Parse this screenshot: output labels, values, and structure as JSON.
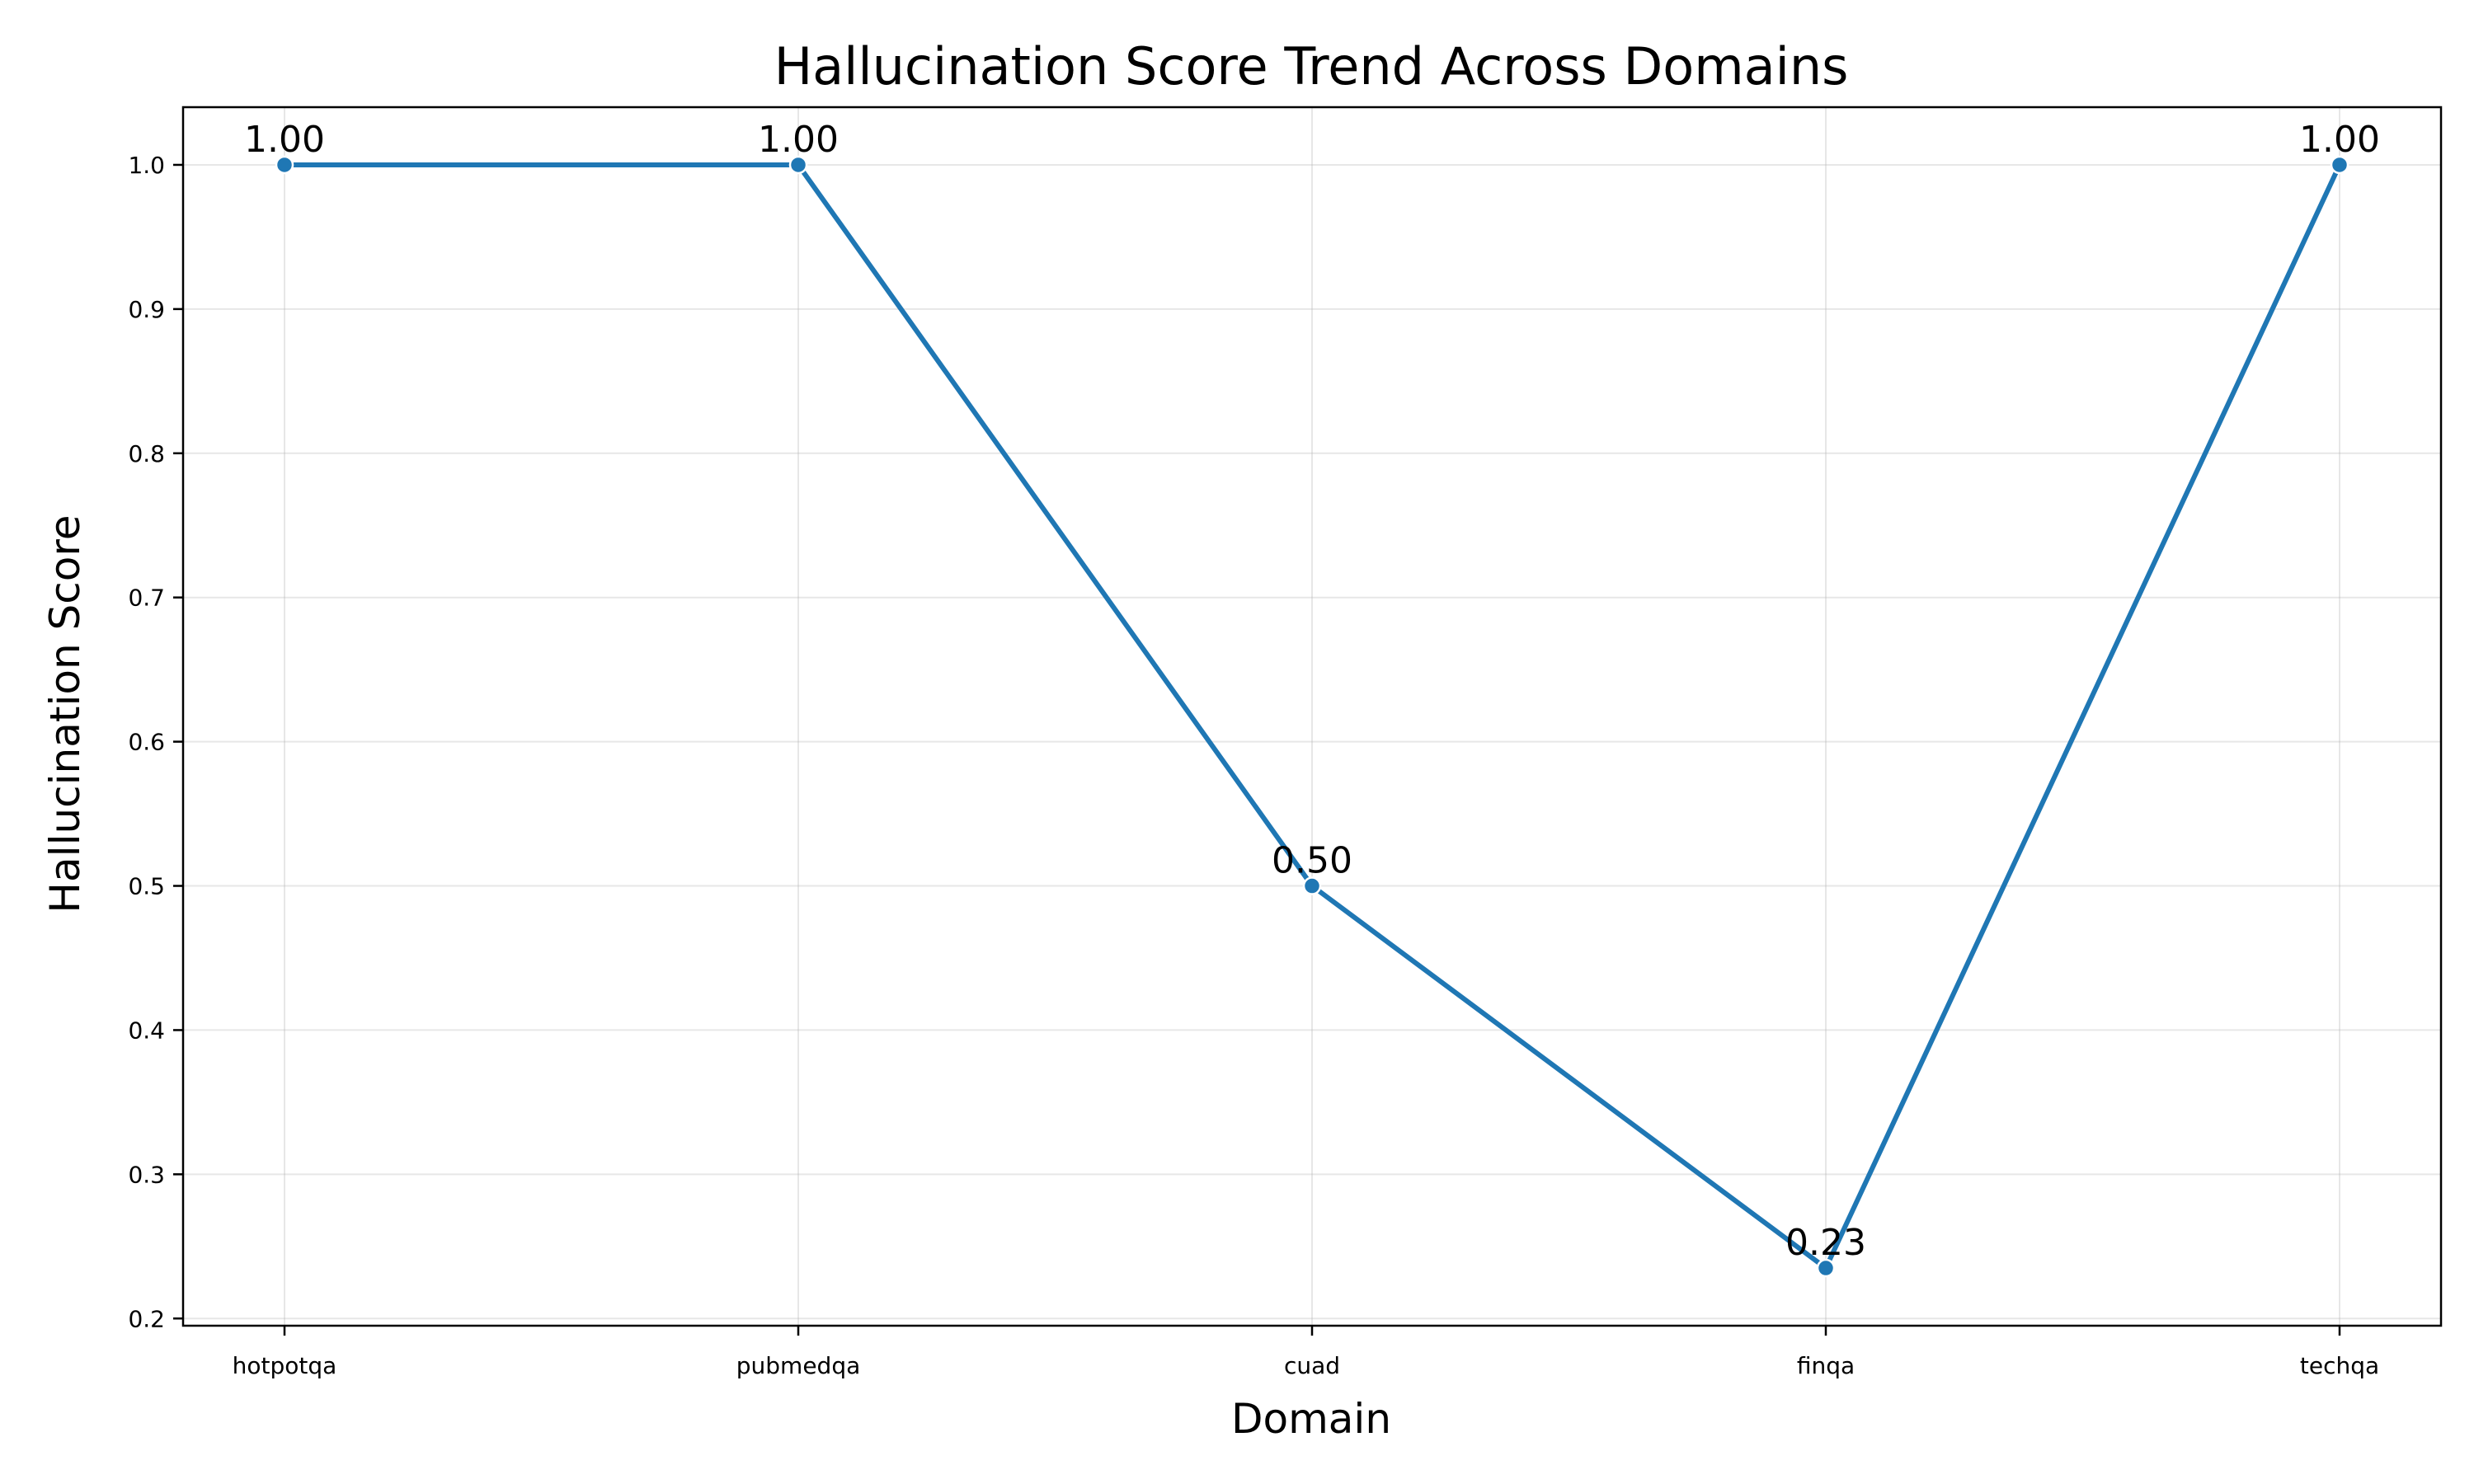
{
  "chart_data": {
    "type": "line",
    "title": "Hallucination Score Trend Across Domains",
    "xlabel": "Domain",
    "ylabel": "Hallucination Score",
    "categories": [
      "hotpotqa",
      "pubmedqa",
      "cuad",
      "finqa",
      "techqa"
    ],
    "series": [
      {
        "values": [
          1.0,
          1.0,
          0.5,
          0.235,
          1.0
        ],
        "data_labels": [
          "1.00",
          "1.00",
          "0.50",
          "0.23",
          "1.00"
        ],
        "color": "#1f77b4"
      }
    ],
    "ylim": [
      0.195,
      1.04
    ],
    "yticks": [
      0.2,
      0.3,
      0.4,
      0.5,
      0.6,
      0.7,
      0.8,
      0.9,
      1.0
    ],
    "ytick_labels": [
      "0.2",
      "0.3",
      "0.4",
      "0.5",
      "0.6",
      "0.7",
      "0.8",
      "0.9",
      "1.0"
    ],
    "grid": true,
    "marker": "circle"
  }
}
